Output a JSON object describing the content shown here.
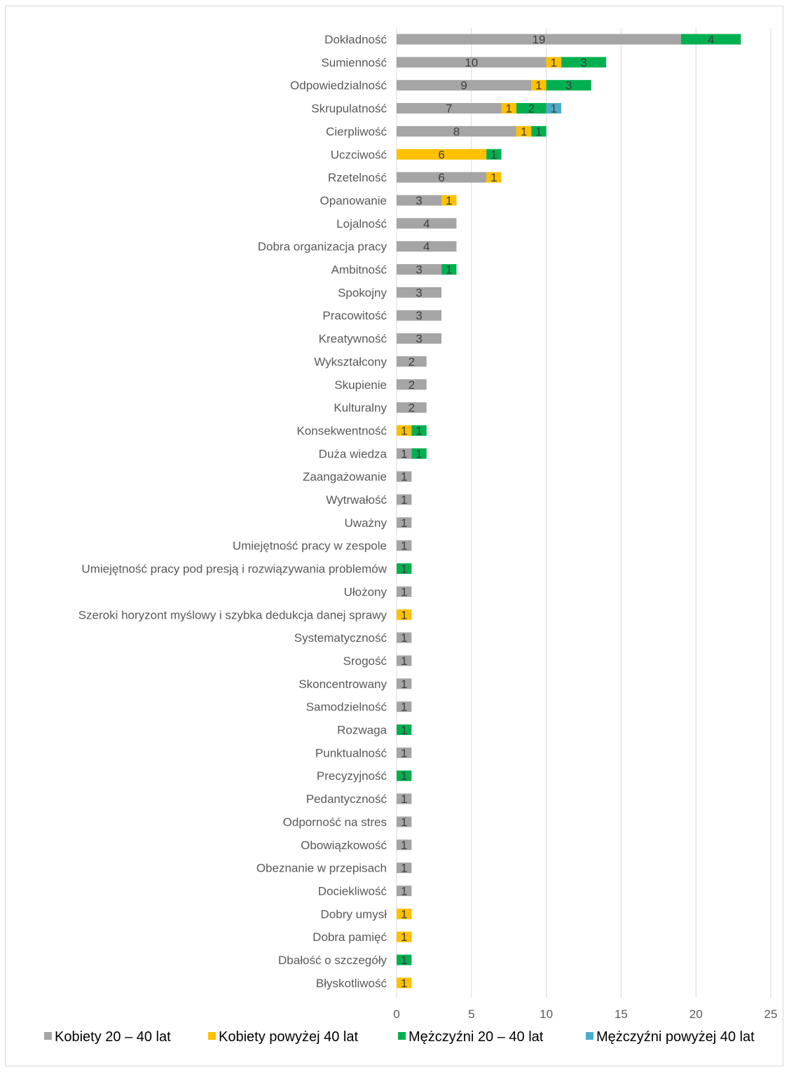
{
  "chart_data": {
    "type": "bar",
    "orientation": "horizontal",
    "stacked": true,
    "title": "",
    "xlabel": "",
    "ylabel": "",
    "xlim": [
      0,
      25
    ],
    "xticks": [
      0,
      5,
      10,
      15,
      20,
      25
    ],
    "grid": true,
    "legend": "bottom",
    "categories": [
      "Dokładność",
      "Sumienność",
      "Odpowiedzialność",
      "Skrupulatność",
      "Cierpliwość",
      "Uczciwość",
      "Rzetelność",
      "Opanowanie",
      "Lojalność",
      "Dobra organizacja pracy",
      "Ambitność",
      "Spokojny",
      "Pracowitość",
      "Kreatywność",
      "Wykształcony",
      "Skupienie",
      "Kulturalny",
      "Konsekwentność",
      "Duża wiedza",
      "Zaangażowanie",
      "Wytrwałość",
      "Uważny",
      "Umiejętność pracy w zespole",
      "Umiejętność pracy pod presją i rozwiązywania problemów",
      "Ułożony",
      "Szeroki horyzont myślowy i szybka dedukcja danej sprawy",
      "Systematyczność",
      "Srogość",
      "Skoncentrowany",
      "Samodzielność",
      "Rozwaga",
      "Punktualność",
      "Precyzyjność",
      "Pedantyczność",
      "Odporność na stres",
      "Obowiązkowość",
      "Obeznanie w przepisach",
      "Dociekliwość",
      "Dobry umysł",
      "Dobra pamięć",
      "Dbałość o szczegóły",
      "Błyskotliwość"
    ],
    "series": [
      {
        "name": "Kobiety 20 – 40 lat",
        "color": "#a5a5a5",
        "values": [
          19,
          10,
          9,
          7,
          8,
          0,
          6,
          3,
          4,
          4,
          3,
          3,
          3,
          3,
          2,
          2,
          2,
          0,
          1,
          1,
          1,
          1,
          1,
          0,
          1,
          0,
          1,
          1,
          1,
          1,
          0,
          1,
          0,
          1,
          1,
          1,
          1,
          1,
          0,
          0,
          0,
          0
        ]
      },
      {
        "name": "Kobiety powyżej 40 lat",
        "color": "#ffc000",
        "values": [
          0,
          1,
          1,
          1,
          1,
          6,
          1,
          1,
          0,
          0,
          0,
          0,
          0,
          0,
          0,
          0,
          0,
          1,
          0,
          0,
          0,
          0,
          0,
          0,
          0,
          1,
          0,
          0,
          0,
          0,
          0,
          0,
          0,
          0,
          0,
          0,
          0,
          0,
          1,
          1,
          0,
          1
        ]
      },
      {
        "name": "Mężczyźni 20 – 40 lat",
        "color": "#00b050",
        "values": [
          4,
          3,
          3,
          2,
          1,
          1,
          0,
          0,
          0,
          0,
          1,
          0,
          0,
          0,
          0,
          0,
          0,
          1,
          1,
          0,
          0,
          0,
          0,
          1,
          0,
          0,
          0,
          0,
          0,
          0,
          1,
          0,
          1,
          0,
          0,
          0,
          0,
          0,
          0,
          0,
          1,
          0
        ]
      },
      {
        "name": "Mężczyźni powyżej 40 lat",
        "color": "#4bacc6",
        "values": [
          0,
          0,
          0,
          1,
          0,
          0,
          0,
          0,
          0,
          0,
          0,
          0,
          0,
          0,
          0,
          0,
          0,
          0,
          0,
          0,
          0,
          0,
          0,
          0,
          0,
          0,
          0,
          0,
          0,
          0,
          0,
          0,
          0,
          0,
          0,
          0,
          0,
          0,
          0,
          0,
          0,
          0
        ]
      }
    ]
  }
}
